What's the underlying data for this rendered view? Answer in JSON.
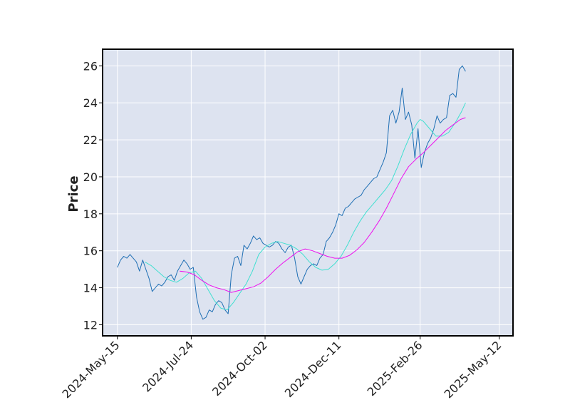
{
  "chart_data": {
    "type": "line",
    "title": "",
    "xlabel": "",
    "ylabel": "Price",
    "ylim": [
      11.4,
      26.9
    ],
    "yticks": [
      12,
      14,
      16,
      18,
      20,
      22,
      24,
      26
    ],
    "x_start": "2024-05-15",
    "x_end": "2025-05-12",
    "xlim": [
      "2024-05-01",
      "2025-05-25"
    ],
    "xticks": [
      {
        "date": "2024-05-15",
        "label": "2024-May-15"
      },
      {
        "date": "2024-07-24",
        "label": "2024-Jul-24"
      },
      {
        "date": "2024-10-02",
        "label": "2024-Oct-02"
      },
      {
        "date": "2024-12-11",
        "label": "2024-Dec-11"
      },
      {
        "date": "2025-02-26",
        "label": "2025-Feb-26"
      },
      {
        "date": "2025-05-12",
        "label": "2025-May-12"
      }
    ],
    "grid": true,
    "background_color": "#dde3f0",
    "series": [
      {
        "color": "#1f6fb4",
        "points": [
          [
            "2024-05-15",
            15.1
          ],
          [
            "2024-05-18",
            15.5
          ],
          [
            "2024-05-21",
            15.7
          ],
          [
            "2024-05-24",
            15.6
          ],
          [
            "2024-05-27",
            15.8
          ],
          [
            "2024-05-30",
            15.6
          ],
          [
            "2024-06-02",
            15.4
          ],
          [
            "2024-06-05",
            14.9
          ],
          [
            "2024-06-08",
            15.5
          ],
          [
            "2024-06-11",
            15.0
          ],
          [
            "2024-06-14",
            14.5
          ],
          [
            "2024-06-17",
            13.8
          ],
          [
            "2024-06-20",
            14.0
          ],
          [
            "2024-06-23",
            14.2
          ],
          [
            "2024-06-26",
            14.1
          ],
          [
            "2024-06-29",
            14.3
          ],
          [
            "2024-07-02",
            14.6
          ],
          [
            "2024-07-05",
            14.7
          ],
          [
            "2024-07-08",
            14.4
          ],
          [
            "2024-07-11",
            14.9
          ],
          [
            "2024-07-14",
            15.2
          ],
          [
            "2024-07-17",
            15.5
          ],
          [
            "2024-07-20",
            15.3
          ],
          [
            "2024-07-23",
            15.0
          ],
          [
            "2024-07-26",
            15.1
          ],
          [
            "2024-07-29",
            13.5
          ],
          [
            "2024-08-01",
            12.7
          ],
          [
            "2024-08-04",
            12.3
          ],
          [
            "2024-08-07",
            12.4
          ],
          [
            "2024-08-10",
            12.8
          ],
          [
            "2024-08-13",
            12.7
          ],
          [
            "2024-08-16",
            13.1
          ],
          [
            "2024-08-19",
            13.3
          ],
          [
            "2024-08-22",
            13.2
          ],
          [
            "2024-08-25",
            12.8
          ],
          [
            "2024-08-28",
            12.6
          ],
          [
            "2024-08-31",
            14.7
          ],
          [
            "2024-09-03",
            15.6
          ],
          [
            "2024-09-06",
            15.7
          ],
          [
            "2024-09-09",
            15.2
          ],
          [
            "2024-09-12",
            16.3
          ],
          [
            "2024-09-15",
            16.1
          ],
          [
            "2024-09-18",
            16.4
          ],
          [
            "2024-09-21",
            16.8
          ],
          [
            "2024-09-24",
            16.6
          ],
          [
            "2024-09-27",
            16.7
          ],
          [
            "2024-09-30",
            16.4
          ],
          [
            "2024-10-03",
            16.3
          ],
          [
            "2024-10-06",
            16.2
          ],
          [
            "2024-10-09",
            16.3
          ],
          [
            "2024-10-12",
            16.5
          ],
          [
            "2024-10-15",
            16.4
          ],
          [
            "2024-10-18",
            16.1
          ],
          [
            "2024-10-21",
            15.9
          ],
          [
            "2024-10-24",
            16.2
          ],
          [
            "2024-10-27",
            16.3
          ],
          [
            "2024-10-30",
            15.6
          ],
          [
            "2024-11-02",
            14.6
          ],
          [
            "2024-11-05",
            14.2
          ],
          [
            "2024-11-08",
            14.6
          ],
          [
            "2024-11-11",
            15.0
          ],
          [
            "2024-11-14",
            15.2
          ],
          [
            "2024-11-17",
            15.3
          ],
          [
            "2024-11-20",
            15.2
          ],
          [
            "2024-11-23",
            15.6
          ],
          [
            "2024-11-26",
            15.8
          ],
          [
            "2024-11-29",
            16.5
          ],
          [
            "2024-12-02",
            16.7
          ],
          [
            "2024-12-05",
            17.0
          ],
          [
            "2024-12-08",
            17.4
          ],
          [
            "2024-12-11",
            18.0
          ],
          [
            "2024-12-14",
            17.9
          ],
          [
            "2024-12-17",
            18.3
          ],
          [
            "2024-12-20",
            18.4
          ],
          [
            "2024-12-23",
            18.6
          ],
          [
            "2024-12-26",
            18.8
          ],
          [
            "2024-12-29",
            18.9
          ],
          [
            "2025-01-01",
            19.0
          ],
          [
            "2025-01-04",
            19.3
          ],
          [
            "2025-01-07",
            19.5
          ],
          [
            "2025-01-10",
            19.7
          ],
          [
            "2025-01-13",
            19.9
          ],
          [
            "2025-01-16",
            20.0
          ],
          [
            "2025-01-19",
            20.4
          ],
          [
            "2025-01-22",
            20.8
          ],
          [
            "2025-01-25",
            21.3
          ],
          [
            "2025-01-28",
            23.3
          ],
          [
            "2025-01-31",
            23.6
          ],
          [
            "2025-02-03",
            22.9
          ],
          [
            "2025-02-06",
            23.5
          ],
          [
            "2025-02-09",
            24.8
          ],
          [
            "2025-02-12",
            23.1
          ],
          [
            "2025-02-15",
            23.5
          ],
          [
            "2025-02-18",
            22.8
          ],
          [
            "2025-02-21",
            21.0
          ],
          [
            "2025-02-24",
            22.6
          ],
          [
            "2025-02-27",
            20.5
          ],
          [
            "2025-03-02",
            21.3
          ],
          [
            "2025-03-05",
            21.8
          ],
          [
            "2025-03-08",
            22.1
          ],
          [
            "2025-03-11",
            22.6
          ],
          [
            "2025-03-14",
            23.3
          ],
          [
            "2025-03-17",
            22.9
          ],
          [
            "2025-03-20",
            23.1
          ],
          [
            "2025-03-23",
            23.2
          ],
          [
            "2025-03-26",
            24.4
          ],
          [
            "2025-03-29",
            24.5
          ],
          [
            "2025-04-01",
            24.3
          ],
          [
            "2025-04-04",
            25.8
          ],
          [
            "2025-04-07",
            26.0
          ],
          [
            "2025-04-10",
            25.7
          ]
        ]
      },
      {
        "color": "#40e0d0",
        "points": [
          [
            "2024-06-10",
            15.4
          ],
          [
            "2024-06-16",
            15.2
          ],
          [
            "2024-06-22",
            14.9
          ],
          [
            "2024-06-28",
            14.6
          ],
          [
            "2024-07-04",
            14.4
          ],
          [
            "2024-07-10",
            14.3
          ],
          [
            "2024-07-16",
            14.5
          ],
          [
            "2024-07-22",
            14.8
          ],
          [
            "2024-07-28",
            14.9
          ],
          [
            "2024-08-03",
            14.5
          ],
          [
            "2024-08-09",
            13.9
          ],
          [
            "2024-08-15",
            13.3
          ],
          [
            "2024-08-21",
            12.9
          ],
          [
            "2024-08-27",
            12.8
          ],
          [
            "2024-09-02",
            13.2
          ],
          [
            "2024-09-08",
            13.7
          ],
          [
            "2024-09-14",
            14.2
          ],
          [
            "2024-09-20",
            14.9
          ],
          [
            "2024-09-26",
            15.8
          ],
          [
            "2024-10-02",
            16.2
          ],
          [
            "2024-10-08",
            16.4
          ],
          [
            "2024-10-14",
            16.5
          ],
          [
            "2024-10-20",
            16.4
          ],
          [
            "2024-10-26",
            16.3
          ],
          [
            "2024-11-01",
            16.1
          ],
          [
            "2024-11-07",
            15.8
          ],
          [
            "2024-11-13",
            15.4
          ],
          [
            "2024-11-19",
            15.1
          ],
          [
            "2024-11-25",
            14.95
          ],
          [
            "2024-12-01",
            15.0
          ],
          [
            "2024-12-07",
            15.3
          ],
          [
            "2024-12-13",
            15.7
          ],
          [
            "2024-12-19",
            16.3
          ],
          [
            "2024-12-25",
            17.0
          ],
          [
            "2024-12-31",
            17.6
          ],
          [
            "2025-01-06",
            18.1
          ],
          [
            "2025-01-12",
            18.5
          ],
          [
            "2025-01-18",
            18.9
          ],
          [
            "2025-01-24",
            19.3
          ],
          [
            "2025-01-30",
            19.8
          ],
          [
            "2025-02-05",
            20.6
          ],
          [
            "2025-02-11",
            21.5
          ],
          [
            "2025-02-17",
            22.3
          ],
          [
            "2025-02-23",
            22.9
          ],
          [
            "2025-02-26",
            23.1
          ],
          [
            "2025-03-01",
            23.0
          ],
          [
            "2025-03-07",
            22.6
          ],
          [
            "2025-03-13",
            22.2
          ],
          [
            "2025-03-19",
            22.2
          ],
          [
            "2025-03-25",
            22.4
          ],
          [
            "2025-03-31",
            22.9
          ],
          [
            "2025-04-06",
            23.5
          ],
          [
            "2025-04-10",
            24.0
          ]
        ]
      },
      {
        "color": "#ee11ee",
        "points": [
          [
            "2024-07-13",
            14.9
          ],
          [
            "2024-07-20",
            14.85
          ],
          [
            "2024-07-27",
            14.7
          ],
          [
            "2024-08-03",
            14.4
          ],
          [
            "2024-08-10",
            14.15
          ],
          [
            "2024-08-17",
            14.0
          ],
          [
            "2024-08-24",
            13.9
          ],
          [
            "2024-08-31",
            13.75
          ],
          [
            "2024-09-07",
            13.85
          ],
          [
            "2024-09-14",
            13.95
          ],
          [
            "2024-09-21",
            14.05
          ],
          [
            "2024-09-28",
            14.25
          ],
          [
            "2024-10-05",
            14.6
          ],
          [
            "2024-10-12",
            15.0
          ],
          [
            "2024-10-19",
            15.35
          ],
          [
            "2024-10-26",
            15.65
          ],
          [
            "2024-11-02",
            15.95
          ],
          [
            "2024-11-09",
            16.1
          ],
          [
            "2024-11-16",
            16.0
          ],
          [
            "2024-11-23",
            15.85
          ],
          [
            "2024-11-30",
            15.7
          ],
          [
            "2024-12-07",
            15.6
          ],
          [
            "2024-12-14",
            15.6
          ],
          [
            "2024-12-21",
            15.75
          ],
          [
            "2024-12-28",
            16.05
          ],
          [
            "2025-01-04",
            16.45
          ],
          [
            "2025-01-11",
            17.0
          ],
          [
            "2025-01-18",
            17.6
          ],
          [
            "2025-01-25",
            18.3
          ],
          [
            "2025-02-01",
            19.1
          ],
          [
            "2025-02-08",
            19.9
          ],
          [
            "2025-02-15",
            20.55
          ],
          [
            "2025-02-22",
            20.95
          ],
          [
            "2025-03-01",
            21.3
          ],
          [
            "2025-03-08",
            21.7
          ],
          [
            "2025-03-15",
            22.1
          ],
          [
            "2025-03-22",
            22.5
          ],
          [
            "2025-03-29",
            22.8
          ],
          [
            "2025-04-05",
            23.1
          ],
          [
            "2025-04-10",
            23.2
          ]
        ]
      }
    ]
  }
}
